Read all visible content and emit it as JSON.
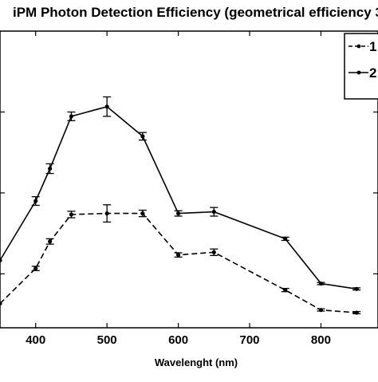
{
  "chart_data": {
    "type": "line",
    "title": "iPM Photon Detection Efficiency (geometrical efficiency 3",
    "xlabel": "Wavelenght (nm)",
    "ylabel": "",
    "xlim": [
      350,
      880
    ],
    "ylim": [
      0,
      5.5
    ],
    "x_ticks": [
      "400",
      "500",
      "600",
      "700",
      "800"
    ],
    "grid": false,
    "legend_position": "top-right",
    "series": [
      {
        "name": "1",
        "style": "dashed",
        "color": "#000000",
        "x": [
          350,
          400,
          420,
          450,
          500,
          550,
          600,
          650,
          750,
          800,
          850
        ],
        "y": [
          0.45,
          1.1,
          1.6,
          2.1,
          2.12,
          2.12,
          1.35,
          1.4,
          0.7,
          0.33,
          0.28
        ],
        "err": [
          0.0,
          0.04,
          0.05,
          0.06,
          0.16,
          0.06,
          0.04,
          0.06,
          0.03,
          0.02,
          0.02
        ]
      },
      {
        "name": "2",
        "style": "solid",
        "color": "#000000",
        "x": [
          350,
          400,
          420,
          450,
          500,
          550,
          600,
          650,
          750,
          800,
          850
        ],
        "y": [
          1.25,
          2.35,
          2.95,
          3.92,
          4.1,
          3.55,
          2.12,
          2.15,
          1.65,
          0.82,
          0.72
        ],
        "err": [
          0.0,
          0.08,
          0.09,
          0.08,
          0.18,
          0.07,
          0.05,
          0.08,
          0.03,
          0.02,
          0.02
        ]
      }
    ]
  }
}
